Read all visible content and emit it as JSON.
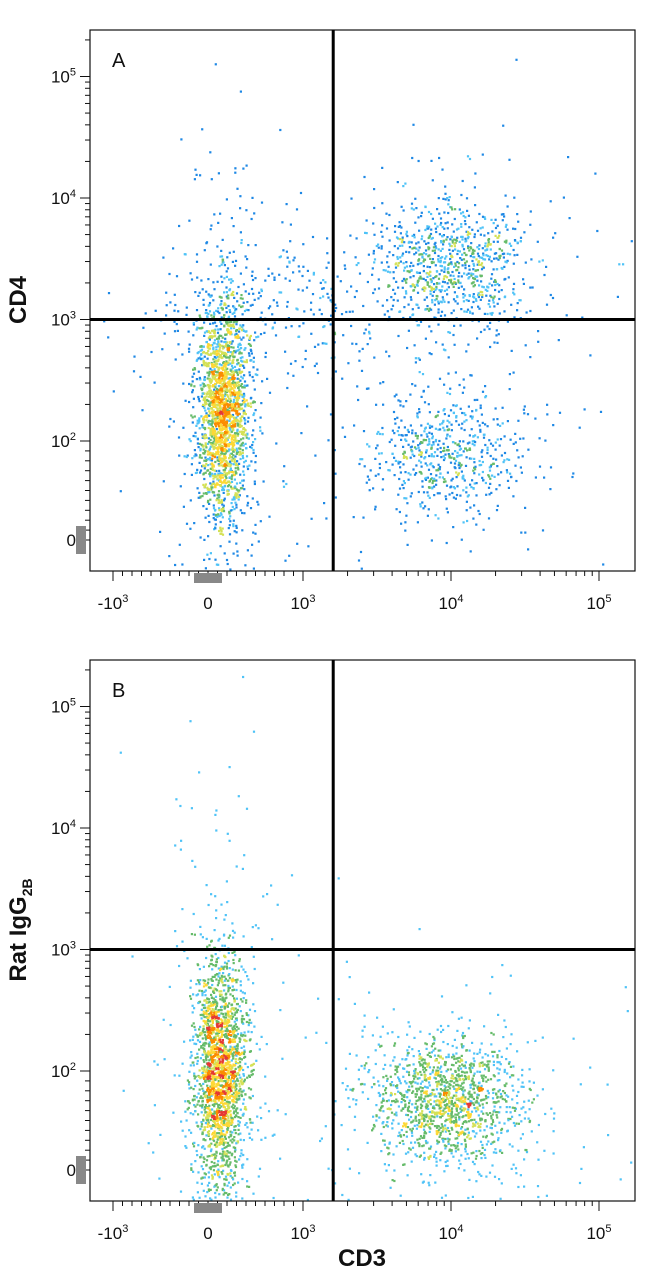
{
  "chart_data": [
    {
      "type": "scatter",
      "subtype": "flow-cytometry-density-plot",
      "panel_label": "A",
      "xlabel": "",
      "ylabel": "CD4",
      "x_scale": "biexponential",
      "y_scale": "biexponential",
      "xlim": [
        -1500,
        250000
      ],
      "ylim": [
        -100,
        250000
      ],
      "x_ticks": [
        {
          "value": -1000,
          "base": "-10",
          "exp": "3"
        },
        {
          "value": 0,
          "base": "0",
          "exp": ""
        },
        {
          "value": 1000,
          "base": "10",
          "exp": "3"
        },
        {
          "value": 10000,
          "base": "10",
          "exp": "4"
        },
        {
          "value": 100000,
          "base": "10",
          "exp": "5"
        }
      ],
      "y_ticks": [
        {
          "value": 0,
          "base": "0",
          "exp": ""
        },
        {
          "value": 100,
          "base": "10",
          "exp": "2"
        },
        {
          "value": 1000,
          "base": "10",
          "exp": "3"
        },
        {
          "value": 10000,
          "base": "10",
          "exp": "4"
        },
        {
          "value": 100000,
          "base": "10",
          "exp": "5"
        }
      ],
      "quadrant_gate": {
        "x": 1600,
        "y": 1000
      },
      "populations": [
        {
          "x_center": 150,
          "y_center": 180,
          "n": 2200
        },
        {
          "x_center": 10000,
          "y_center": 3000,
          "n": 900
        },
        {
          "x_center": 9000,
          "y_center": 90,
          "n": 650
        },
        {
          "x_center": 800,
          "y_center": 1200,
          "n": 300
        }
      ]
    },
    {
      "type": "scatter",
      "subtype": "flow-cytometry-density-plot",
      "panel_label": "B",
      "xlabel": "CD3",
      "ylabel": "Rat IgG",
      "ylabel_subscript": "2B",
      "x_scale": "biexponential",
      "y_scale": "biexponential",
      "xlim": [
        -1500,
        250000
      ],
      "ylim": [
        -100,
        250000
      ],
      "x_ticks": [
        {
          "value": -1000,
          "base": "-10",
          "exp": "3"
        },
        {
          "value": 0,
          "base": "0",
          "exp": ""
        },
        {
          "value": 1000,
          "base": "10",
          "exp": "3"
        },
        {
          "value": 10000,
          "base": "10",
          "exp": "4"
        },
        {
          "value": 100000,
          "base": "10",
          "exp": "5"
        }
      ],
      "y_ticks": [
        {
          "value": 0,
          "base": "0",
          "exp": ""
        },
        {
          "value": 100,
          "base": "10",
          "exp": "2"
        },
        {
          "value": 1000,
          "base": "10",
          "exp": "3"
        },
        {
          "value": 10000,
          "base": "10",
          "exp": "4"
        },
        {
          "value": 100000,
          "base": "10",
          "exp": "5"
        }
      ],
      "quadrant_gate": {
        "x": 1600,
        "y": 1000
      },
      "populations": [
        {
          "x_center": 120,
          "y_center": 100,
          "n": 2200
        },
        {
          "x_center": 9000,
          "y_center": 70,
          "n": 1500
        }
      ]
    }
  ],
  "colors": {
    "density_scale": [
      "#1a237e",
      "#1e88e5",
      "#4fc3f7",
      "#66bb6a",
      "#d4e157",
      "#fdd835",
      "#fb8c00",
      "#e53935"
    ],
    "frame": "#111111",
    "gate_line": "#000000",
    "zero_marker": "#888888"
  }
}
